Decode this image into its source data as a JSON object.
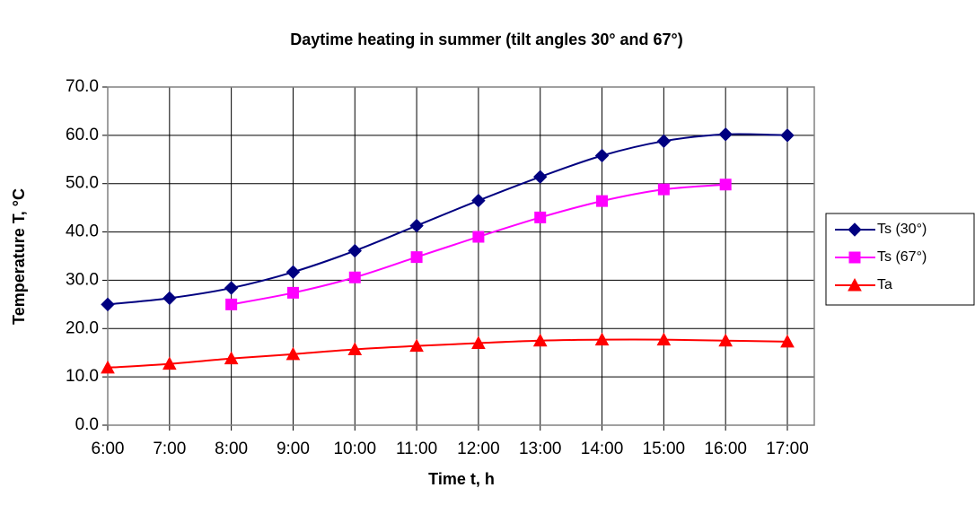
{
  "chart_data": {
    "type": "line",
    "title": "Daytime heating in summer (tilt angles 30° and 67°)",
    "xlabel": "Time t, h",
    "ylabel": "Temperature T, °C",
    "categories": [
      "6:00",
      "7:00",
      "8:00",
      "9:00",
      "10:00",
      "11:00",
      "12:00",
      "13:00",
      "14:00",
      "15:00",
      "16:00",
      "17:00"
    ],
    "series": [
      {
        "name": "Ts (30°)",
        "color": "#000080",
        "marker": "diamond",
        "values": [
          25.0,
          26.3,
          28.4,
          31.7,
          36.1,
          41.3,
          46.5,
          51.4,
          55.8,
          58.8,
          60.2,
          60.0
        ]
      },
      {
        "name": "Ts (67°)",
        "color": "#ff00ff",
        "marker": "square",
        "values": [
          null,
          null,
          25.0,
          27.4,
          30.6,
          34.8,
          39.0,
          43.0,
          46.4,
          48.8,
          49.8,
          null
        ]
      },
      {
        "name": "Ta",
        "color": "#ff0000",
        "marker": "triangle",
        "values": [
          11.9,
          12.7,
          13.8,
          14.7,
          15.7,
          16.4,
          17.0,
          17.5,
          17.7,
          17.7,
          17.5,
          17.3
        ]
      }
    ],
    "ylim": [
      0,
      70
    ],
    "yticks": [
      {
        "value": 0,
        "label": "0.0"
      },
      {
        "value": 10,
        "label": "10.0"
      },
      {
        "value": 20,
        "label": "20.0"
      },
      {
        "value": 30,
        "label": "30.0"
      },
      {
        "value": 40,
        "label": "40.0"
      },
      {
        "value": 50,
        "label": "50.0"
      },
      {
        "value": 60,
        "label": "60.0"
      },
      {
        "value": 70,
        "label": "70.0"
      }
    ],
    "grid": true,
    "legend": "right"
  }
}
